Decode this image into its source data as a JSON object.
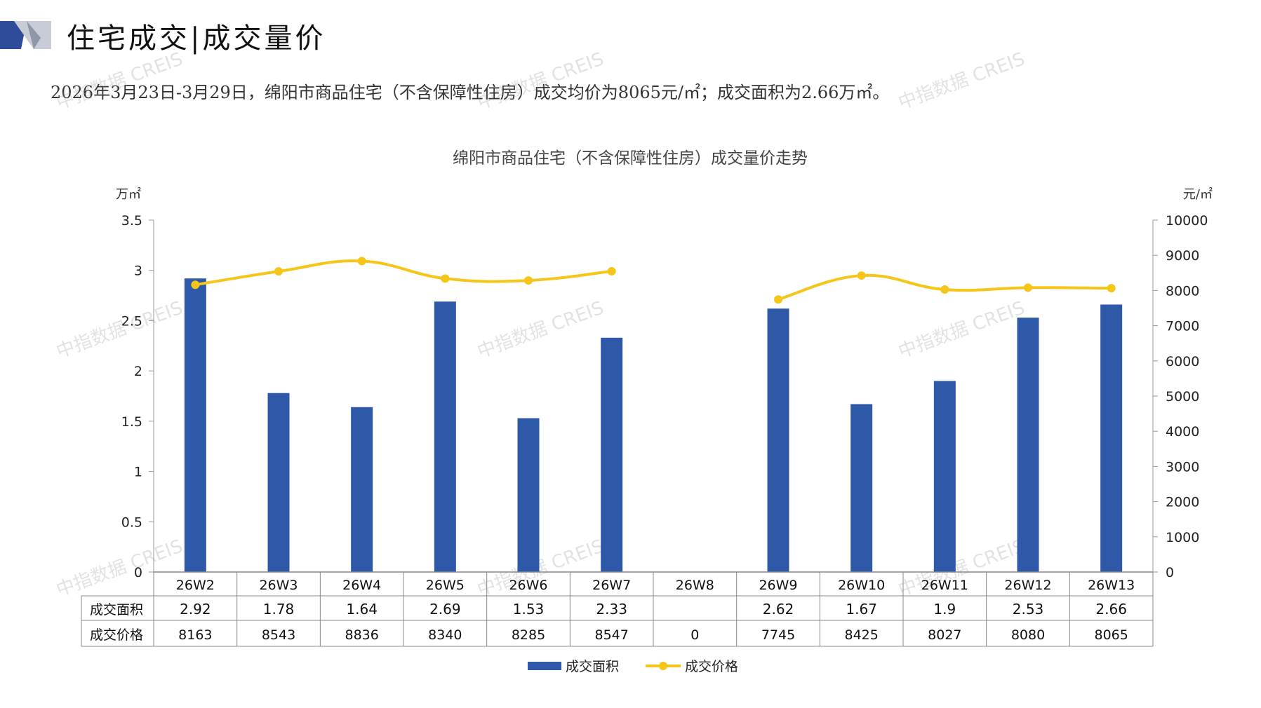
{
  "header": {
    "title": "住宅成交|成交量价",
    "summary": "2026年3月23日-3月29日，绵阳市商品住宅（不含保障性住房）成交均价为8065元/㎡；成交面积为2.66万㎡。",
    "watermark": "中指数据 CREIS"
  },
  "colors": {
    "bar": "#2E59A8",
    "line": "#F5C518",
    "logo_dark": "#2E4C9A",
    "logo_light": "#C8CCD6"
  },
  "chart_data": {
    "type": "bar",
    "title": "绵阳市商品住宅（不含保障性住房）成交量价走势",
    "categories": [
      "26W2",
      "26W3",
      "26W4",
      "26W5",
      "26W6",
      "26W7",
      "26W8",
      "26W9",
      "26W10",
      "26W11",
      "26W12",
      "26W13"
    ],
    "y_left_label": "万㎡",
    "y_right_label": "元/㎡",
    "y_left_range": [
      0,
      3.5
    ],
    "y_left_ticks": [
      "0",
      "0.5",
      "1",
      "1.5",
      "2",
      "2.5",
      "3",
      "3.5"
    ],
    "y_right_range": [
      0,
      10000
    ],
    "y_right_ticks": [
      "0",
      "1000",
      "2000",
      "3000",
      "4000",
      "5000",
      "6000",
      "7000",
      "8000",
      "9000",
      "10000"
    ],
    "legend_position": "bottom",
    "series": [
      {
        "name": "成交面积",
        "type": "bar",
        "values": [
          2.92,
          1.78,
          1.64,
          2.69,
          1.53,
          2.33,
          null,
          2.62,
          1.67,
          1.9,
          2.53,
          2.66
        ],
        "labels": [
          "2.92",
          "1.78",
          "1.64",
          "2.69",
          "1.53",
          "2.33",
          "",
          "2.62",
          "1.67",
          "1.9",
          "2.53",
          "2.66"
        ]
      },
      {
        "name": "成交价格",
        "type": "line",
        "values": [
          8163,
          8543,
          8836,
          8340,
          8285,
          8547,
          0,
          7745,
          8425,
          8027,
          8080,
          8065
        ],
        "labels": [
          "8163",
          "8543",
          "8836",
          "8340",
          "8285",
          "8547",
          "0",
          "7745",
          "8425",
          "8027",
          "8080",
          "8065"
        ]
      }
    ]
  }
}
